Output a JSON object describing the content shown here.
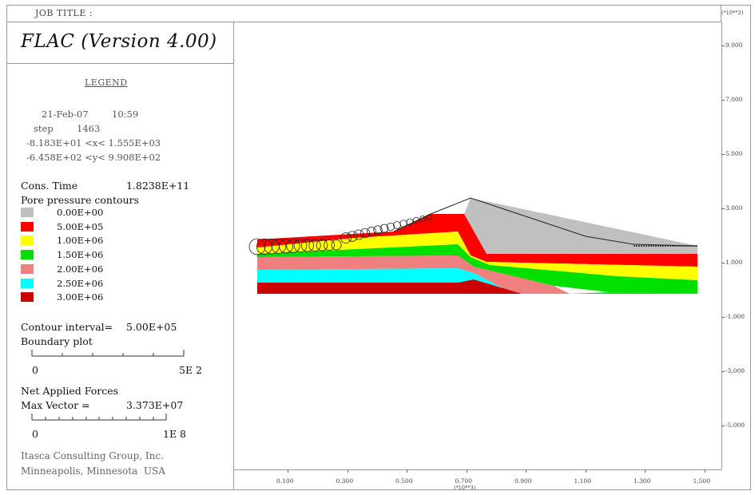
{
  "header": {
    "job_title": "JOB TITLE :",
    "scale_unit_y": "(*10**2)",
    "scale_unit_x": "(*10**3)"
  },
  "title": "FLAC (Version 4.00)",
  "legend": {
    "heading": "LEGEND",
    "date": "21-Feb-07",
    "time": "10:59",
    "step_label": "step",
    "step_value": "1463",
    "x_range": "-8.183E+01 <x< 1.555E+03",
    "y_range": "-6.458E+02 <y< 9.908E+02",
    "cons_time_label": "Cons. Time",
    "cons_time_value": "1.8238E+11",
    "contours_title": "Pore pressure contours",
    "contours": [
      {
        "label": "0.00E+00",
        "color": "#c0c0c0"
      },
      {
        "label": "5.00E+05",
        "color": "#ff0000"
      },
      {
        "label": "1.00E+06",
        "color": "#ffff00"
      },
      {
        "label": "1.50E+06",
        "color": "#00e000"
      },
      {
        "label": "2.00E+06",
        "color": "#f08080"
      },
      {
        "label": "2.50E+06",
        "color": "#00ffff"
      },
      {
        "label": "3.00E+06",
        "color": "#cc0000"
      }
    ],
    "contour_interval_label": "Contour interval=",
    "contour_interval_value": "5.00E+05",
    "boundary_plot": "Boundary plot",
    "boundary_scale_start": "0",
    "boundary_scale_end": "5E 2",
    "net_forces": "Net Applied Forces",
    "max_vector_label": "Max Vector =",
    "max_vector_value": "3.373E+07",
    "vector_scale_start": "0",
    "vector_scale_end": "1E 8",
    "company": "Itasca Consulting Group, Inc.",
    "location": "Minneapolis, Minnesota  USA"
  },
  "chart_data": {
    "type": "heatmap",
    "title": "Pore pressure contours",
    "x_ticks": [
      "0.100",
      "0.300",
      "0.500",
      "0.700",
      "0.900",
      "1.100",
      "1.300",
      "1.500"
    ],
    "y_ticks": [
      "9.000",
      "7.000",
      "5.000",
      "3.000",
      "1.000",
      "-1.000",
      "-3.000",
      "-5.000"
    ],
    "x_unit": "(*10**3)",
    "y_unit": "(*10**2)",
    "xlim": [
      -81.83,
      1555
    ],
    "ylim": [
      -645.8,
      990.8
    ],
    "contour_levels": [
      0,
      500000,
      1000000,
      1500000,
      2000000,
      2500000,
      3000000
    ],
    "contour_interval": 500000,
    "grid": false
  }
}
